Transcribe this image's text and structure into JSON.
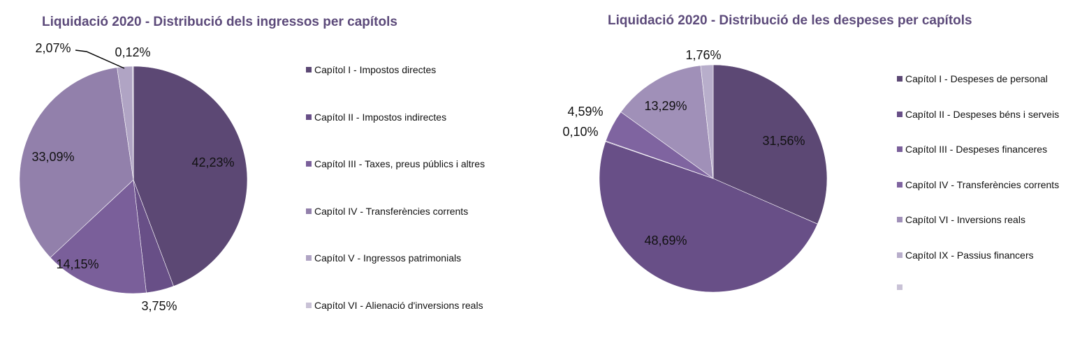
{
  "chart_data": [
    {
      "type": "pie",
      "title": "Liquidació 2020 - Distribució dels ingressos per capítols",
      "categories": [
        "Capítol I - Impostos directes",
        "Capítol II - Impostos indirectes",
        "Capítol III - Taxes, preus públics i altres",
        "Capítol IV - Transferències corrents",
        "Capítol V - Ingressos patrimonials",
        "Capítol VI - Alienació d'inversions reals"
      ],
      "values": [
        42.23,
        3.75,
        14.15,
        33.09,
        2.07,
        0.12
      ],
      "labels": [
        "42,23%",
        "3,75%",
        "14,15%",
        "33,09%",
        "2,07%",
        "0,12%"
      ],
      "colors": [
        "#5c4874",
        "#684f87",
        "#7a5f9a",
        "#9280ab",
        "#b0a4c4",
        "#c9c2d6"
      ],
      "legend": "right"
    },
    {
      "type": "pie",
      "title": "Liquidació 2020 - Distribució de les despeses per capítols",
      "categories": [
        "Capítol I - Despeses de personal",
        "Capítol II - Despeses béns i serveis",
        "Capítol III - Despeses financeres",
        "Capítol IV - Transferències corrents",
        "Capítol VI - Inversions reals",
        "Capítol IX - Passius financers",
        ""
      ],
      "values": [
        31.56,
        48.69,
        0.1,
        4.59,
        13.29,
        1.76,
        0
      ],
      "labels": [
        "31,56%",
        "48,69%",
        "0,10%",
        "4,59%",
        "13,29%",
        "1,76%",
        ""
      ],
      "colors": [
        "#5c4874",
        "#684f87",
        "#7a5f9a",
        "#7f64a0",
        "#a090b8",
        "#b8aecb",
        "#c9c2d6"
      ],
      "legend": "right"
    }
  ]
}
